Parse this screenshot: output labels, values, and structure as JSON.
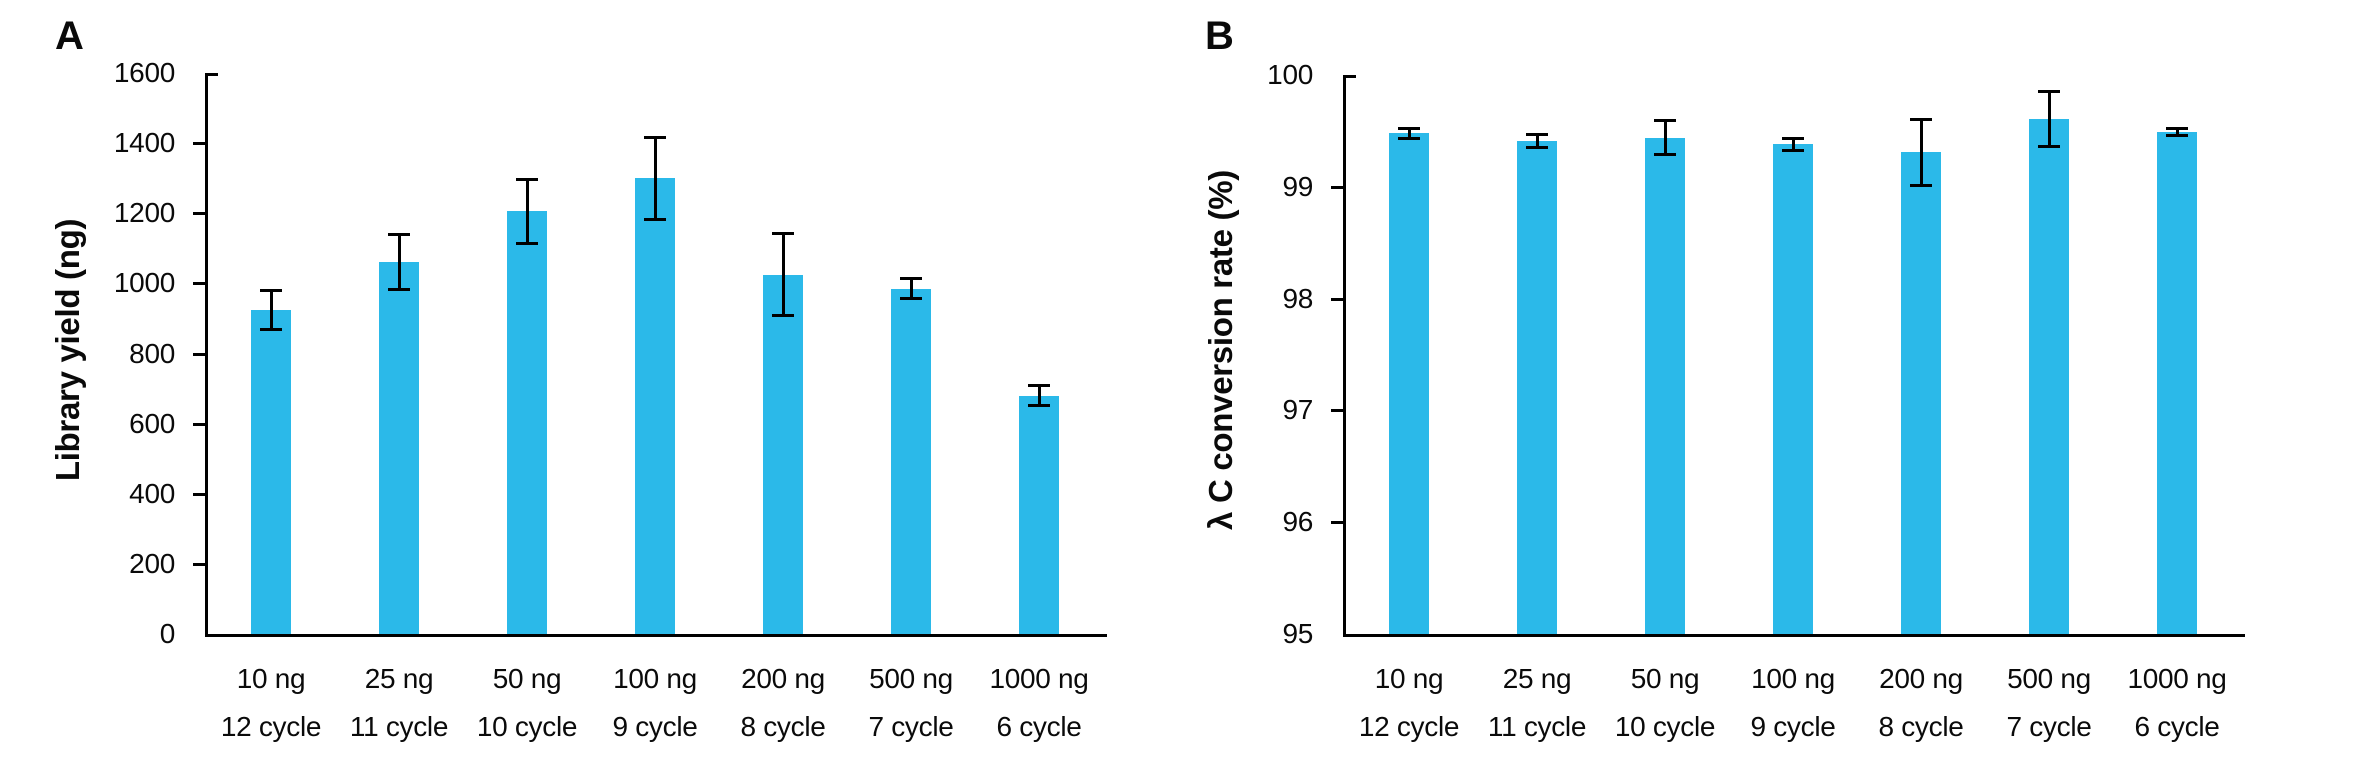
{
  "figure": {
    "background": "#ffffff",
    "bar_color": "#2BB9E9",
    "axis_color": "#000000",
    "text_color": "#0a0a0a"
  },
  "chart_data": [
    {
      "type": "bar",
      "panel_label": "A",
      "title": "",
      "xlabel": "",
      "ylabel": "Library yield (ng)",
      "ylim": [
        0,
        1600
      ],
      "ytick_step": 200,
      "ytick_labels": [
        "1600",
        "1400",
        "1200",
        "1000",
        "800",
        "600",
        "400",
        "200",
        "0"
      ],
      "categories": [
        "10 ng / 12 cycle",
        "25 ng / 11 cycle",
        "50 ng / 10 cycle",
        "100 ng / 9 cycle",
        "200 ng / 8 cycle",
        "500 ng / 7 cycle",
        "1000 ng / 6 cycle"
      ],
      "categories_line1": [
        "10 ng",
        "25 ng",
        "50 ng",
        "100 ng",
        "200 ng",
        "500 ng",
        "1000 ng"
      ],
      "categories_line2": [
        "12 cycle",
        "11 cycle",
        "10 cycle",
        "9 cycle",
        "8 cycle",
        "7 cycle",
        "6 cycle"
      ],
      "values": [
        925,
        1060,
        1205,
        1300,
        1025,
        985,
        680
      ],
      "errors": [
        57,
        80,
        92,
        118,
        119,
        30,
        31
      ],
      "grid": false,
      "legend": "none"
    },
    {
      "type": "bar",
      "panel_label": "B",
      "title": "",
      "xlabel": "",
      "ylabel": "λ C conversion rate (%)",
      "ylim": [
        95,
        100
      ],
      "ytick_step": 1,
      "ytick_labels": [
        "100",
        "99",
        "98",
        "97",
        "96",
        "95"
      ],
      "categories": [
        "10 ng / 12 cycle",
        "25 ng / 11 cycle",
        "50 ng / 10 cycle",
        "100 ng / 9 cycle",
        "200 ng / 8 cycle",
        "500 ng / 7 cycle",
        "1000 ng / 6 cycle"
      ],
      "categories_line1": [
        "10 ng",
        "25 ng",
        "50 ng",
        "100 ng",
        "200 ng",
        "500 ng",
        "1000 ng"
      ],
      "categories_line2": [
        "12 cycle",
        "11 cycle",
        "10 cycle",
        "9 cycle",
        "8 cycle",
        "7 cycle",
        "6 cycle"
      ],
      "values": [
        99.48,
        99.41,
        99.44,
        99.38,
        99.31,
        99.61,
        99.49
      ],
      "errors": [
        0.05,
        0.06,
        0.16,
        0.06,
        0.3,
        0.25,
        0.04
      ],
      "grid": false,
      "legend": "none"
    }
  ]
}
